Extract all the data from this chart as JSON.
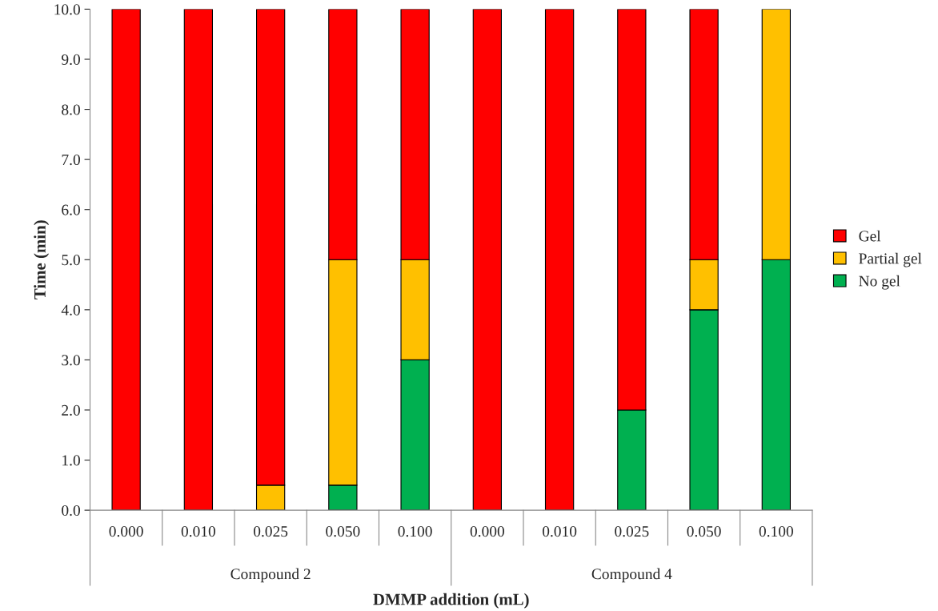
{
  "chart_data": {
    "type": "bar",
    "stacked": true,
    "ylabel": "Time (min)",
    "xlabel": "DMMP addition (mL)",
    "categories": [
      "0.000",
      "0.010",
      "0.025",
      "0.050",
      "0.100",
      "0.000",
      "0.010",
      "0.025",
      "0.050",
      "0.100"
    ],
    "annotations": [
      "Compound 2",
      "Compound 4"
    ],
    "series": [
      {
        "name": "No gel",
        "color": "#00b050",
        "values": [
          0,
          0,
          0,
          0.5,
          3,
          0,
          0,
          2,
          4,
          5
        ]
      },
      {
        "name": "Partial gel",
        "color": "#ffc000",
        "values": [
          0,
          0,
          0.5,
          4.5,
          2,
          0,
          0,
          0,
          1,
          5
        ]
      },
      {
        "name": "Gel",
        "color": "#ff0000",
        "values": [
          10,
          10,
          9.5,
          5,
          5,
          10,
          10,
          8,
          5,
          0
        ]
      }
    ],
    "ylim": [
      0,
      10
    ],
    "yticks": [
      {
        "value": 0,
        "label": "0.0"
      },
      {
        "value": 1,
        "label": "1.0"
      },
      {
        "value": 2,
        "label": "2.0"
      },
      {
        "value": 3,
        "label": "3.0"
      },
      {
        "value": 4,
        "label": "4.0"
      },
      {
        "value": 5,
        "label": "5.0"
      },
      {
        "value": 6,
        "label": "6.0"
      },
      {
        "value": 7,
        "label": "7.0"
      },
      {
        "value": 8,
        "label": "8.0"
      },
      {
        "value": 9,
        "label": "9.0"
      },
      {
        "value": 10,
        "label": "10.0"
      }
    ],
    "grid": false,
    "legend": "right"
  }
}
